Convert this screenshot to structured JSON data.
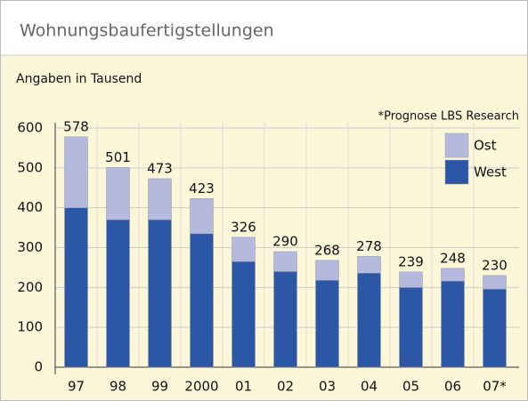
{
  "chart_data": {
    "type": "stacked_bar",
    "title": "Wohnungsbaufertigstellungen",
    "subtitle": "Angaben in Tausend",
    "annotation": "*Prognose LBS Research",
    "categories": [
      "97",
      "98",
      "99",
      "2000",
      "01",
      "02",
      "03",
      "04",
      "05",
      "06",
      "07*"
    ],
    "series": [
      {
        "name": "West",
        "color": "#2b57a6",
        "values": [
          400,
          370,
          370,
          335,
          265,
          240,
          218,
          236,
          200,
          216,
          196
        ]
      },
      {
        "name": "Ost",
        "color": "#b6b9de",
        "values": [
          178,
          131,
          103,
          88,
          61,
          50,
          50,
          42,
          39,
          32,
          34
        ]
      }
    ],
    "totals": [
      578,
      501,
      473,
      423,
      326,
      290,
      268,
      278,
      239,
      248,
      230
    ],
    "ylim": [
      0,
      600
    ],
    "yticks": [
      0,
      100,
      200,
      300,
      400,
      500,
      600
    ],
    "grid": true,
    "legend": "top-right"
  }
}
